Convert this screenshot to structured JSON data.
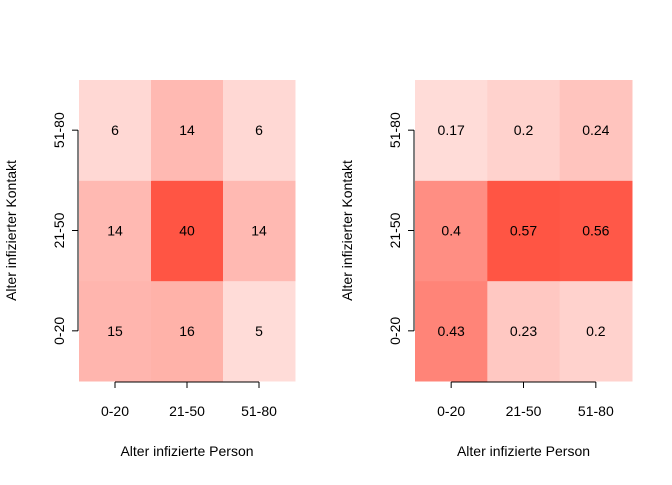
{
  "chart_data": [
    {
      "type": "heatmap",
      "title": "",
      "xlabel": "Alter infizierte Person",
      "ylabel": "Alter infizierter Kontakt",
      "x_categories": [
        "0-20",
        "21-50",
        "51-80"
      ],
      "y_categories": [
        "0-20",
        "21-50",
        "51-80"
      ],
      "values": [
        [
          15,
          16,
          5
        ],
        [
          14,
          40,
          14
        ],
        [
          6,
          14,
          6
        ]
      ],
      "value_labels": [
        [
          "15",
          "16",
          "5"
        ],
        [
          "14",
          "40",
          "14"
        ],
        [
          "6",
          "14",
          "6"
        ]
      ],
      "color_low": "#ffdcd8",
      "color_high": "#ff5544"
    },
    {
      "type": "heatmap",
      "title": "",
      "xlabel": "Alter infizierte Person",
      "ylabel": "Alter infizierter Kontakt",
      "x_categories": [
        "0-20",
        "21-50",
        "51-80"
      ],
      "y_categories": [
        "0-20",
        "21-50",
        "51-80"
      ],
      "values": [
        [
          0.43,
          0.23,
          0.2
        ],
        [
          0.4,
          0.57,
          0.56
        ],
        [
          0.17,
          0.2,
          0.24
        ]
      ],
      "value_labels": [
        [
          "0.43",
          "0.23",
          "0.2"
        ],
        [
          "0.4",
          "0.57",
          "0.56"
        ],
        [
          "0.17",
          "0.2",
          "0.24"
        ]
      ],
      "color_low": "#ffdcd8",
      "color_high": "#ff5544"
    }
  ]
}
